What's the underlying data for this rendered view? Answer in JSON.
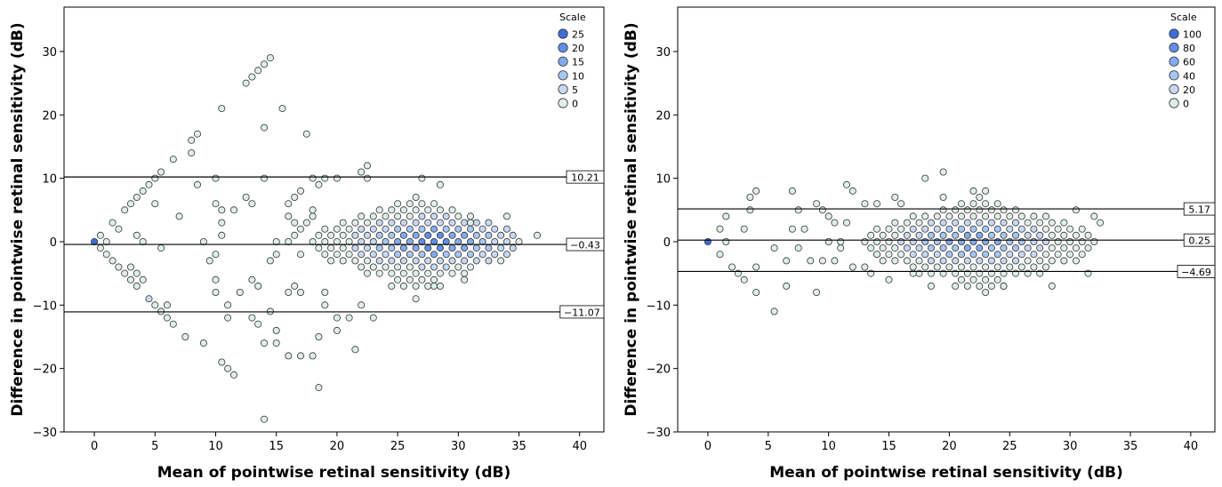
{
  "chart_data": [
    {
      "type": "scatter",
      "xlabel": "Mean of pointwise retinal sensitivity (dB)",
      "ylabel": "Difference in pointwise retinal sensitivity (dB)",
      "xlim": [
        -2.5,
        42
      ],
      "ylim": [
        -30,
        37
      ],
      "xticks": [
        0,
        5,
        10,
        15,
        20,
        25,
        30,
        35,
        40
      ],
      "yticks": [
        -30,
        -20,
        -10,
        0,
        10,
        20,
        30
      ],
      "grid": false,
      "lines": [
        10.21,
        -0.43,
        -11.07
      ],
      "line_labels": [
        "10.21",
        "-0.43",
        "-11.07"
      ],
      "legend": {
        "title": "Scale",
        "placement": "top-right",
        "items": [
          "25",
          "20",
          "15",
          "10",
          "5",
          "0"
        ],
        "colors": [
          "#3d6fd8",
          "#5f8fe6",
          "#82aaee",
          "#a7c6f0",
          "#c8d8f2",
          "#dfeee9"
        ]
      },
      "points": [
        [
          0,
          0,
          25
        ],
        [
          0.5,
          1,
          2
        ],
        [
          1,
          0,
          1
        ],
        [
          0.5,
          -1,
          1
        ],
        [
          1.5,
          3,
          1
        ],
        [
          2,
          2,
          1
        ],
        [
          1,
          -2,
          1
        ],
        [
          1.5,
          -3,
          1
        ],
        [
          2,
          -4,
          1
        ],
        [
          2.5,
          -5,
          1
        ],
        [
          3,
          -6,
          1
        ],
        [
          2.5,
          5,
          1
        ],
        [
          3,
          6,
          1
        ],
        [
          3.5,
          7,
          1
        ],
        [
          4,
          8,
          1
        ],
        [
          4.5,
          9,
          1
        ],
        [
          5,
          10,
          1
        ],
        [
          5.5,
          11,
          1
        ],
        [
          3.5,
          1,
          1
        ],
        [
          4,
          0,
          1
        ],
        [
          3,
          -4,
          1
        ],
        [
          3.5,
          -5,
          1
        ],
        [
          4,
          -6,
          1
        ],
        [
          3.5,
          -7,
          1
        ],
        [
          4.5,
          -9,
          3
        ],
        [
          5,
          -10,
          1
        ],
        [
          5.5,
          -11,
          1
        ],
        [
          6,
          -10,
          1
        ],
        [
          6,
          -12,
          1
        ],
        [
          6.5,
          -13,
          1
        ],
        [
          5,
          6,
          1
        ],
        [
          5.5,
          -1,
          1
        ],
        [
          7,
          4,
          1
        ],
        [
          6.5,
          13,
          1
        ],
        [
          7.5,
          -15,
          1
        ],
        [
          8,
          14,
          1
        ],
        [
          8,
          16,
          1
        ],
        [
          8.5,
          17,
          1
        ],
        [
          8.5,
          9,
          1
        ],
        [
          9,
          0,
          1
        ],
        [
          9,
          -16,
          1
        ],
        [
          9.5,
          -3,
          1
        ],
        [
          10,
          -2,
          1
        ],
        [
          10,
          10,
          1
        ],
        [
          10,
          6,
          1
        ],
        [
          10.5,
          5,
          1
        ],
        [
          10.5,
          3,
          1
        ],
        [
          10.5,
          1,
          1
        ],
        [
          10,
          -6,
          1
        ],
        [
          10,
          -8,
          1
        ],
        [
          10.5,
          -19,
          1
        ],
        [
          10.5,
          21,
          1
        ],
        [
          11,
          -20,
          1
        ],
        [
          11.5,
          -21,
          1
        ],
        [
          11,
          -10,
          1
        ],
        [
          11,
          -12,
          1
        ],
        [
          11.5,
          5,
          1
        ],
        [
          12,
          -8,
          1
        ],
        [
          12.5,
          7,
          1
        ],
        [
          12.5,
          25,
          1
        ],
        [
          13,
          26,
          1
        ],
        [
          13.5,
          27,
          1
        ],
        [
          14,
          28,
          1
        ],
        [
          14.5,
          29,
          1
        ],
        [
          13,
          6,
          1
        ],
        [
          13,
          -12,
          1
        ],
        [
          13.5,
          -13,
          1
        ],
        [
          13,
          -6,
          1
        ],
        [
          13.5,
          -7,
          1
        ],
        [
          14,
          18,
          1
        ],
        [
          14,
          10,
          1
        ],
        [
          14,
          -16,
          1
        ],
        [
          14,
          -28,
          1
        ],
        [
          14.5,
          -11,
          1
        ],
        [
          14.5,
          -3,
          1
        ],
        [
          15,
          -2,
          1
        ],
        [
          15,
          0,
          1
        ],
        [
          15,
          -14,
          1
        ],
        [
          15,
          -16,
          1
        ],
        [
          15.5,
          21,
          1
        ],
        [
          16,
          6,
          1
        ],
        [
          16,
          4,
          1
        ],
        [
          16,
          0,
          1
        ],
        [
          16,
          -8,
          1
        ],
        [
          16,
          -18,
          1
        ],
        [
          16.5,
          7,
          1
        ],
        [
          16.5,
          3,
          1
        ],
        [
          16.5,
          1,
          1
        ],
        [
          16.5,
          -7,
          1
        ],
        [
          17,
          8,
          1
        ],
        [
          17,
          2,
          1
        ],
        [
          17,
          -2,
          1
        ],
        [
          17,
          -8,
          1
        ],
        [
          17,
          -18,
          1
        ],
        [
          17.5,
          17,
          1
        ],
        [
          17.5,
          3,
          1
        ],
        [
          18,
          10,
          1
        ],
        [
          18,
          5,
          1
        ],
        [
          18,
          4,
          1
        ],
        [
          18,
          -18,
          1
        ],
        [
          18.5,
          9,
          1
        ],
        [
          18.5,
          -15,
          1
        ],
        [
          18.5,
          -23,
          1
        ],
        [
          19,
          10,
          1
        ],
        [
          19,
          -10,
          1
        ],
        [
          19,
          -8,
          1
        ],
        [
          20,
          10,
          1
        ],
        [
          20,
          -12,
          1
        ],
        [
          20,
          -14,
          1
        ],
        [
          21,
          -12,
          1
        ],
        [
          21.5,
          -17,
          1
        ],
        [
          22,
          -10,
          1
        ],
        [
          22,
          11,
          1
        ],
        [
          22.5,
          12,
          1
        ],
        [
          22.5,
          10,
          1
        ],
        [
          23,
          -12,
          1
        ],
        [
          26.5,
          -9,
          1
        ],
        [
          27,
          10,
          1
        ],
        [
          28,
          -7,
          1
        ],
        [
          28.5,
          9,
          1
        ],
        [
          30.5,
          -6,
          1
        ],
        [
          31,
          3,
          1
        ],
        [
          34,
          4,
          1
        ],
        [
          36.5,
          1,
          1
        ]
      ],
      "dense_region": {
        "x_from": 18,
        "x_to": 35,
        "step": 0.5,
        "peak_x": 28,
        "peak_y": 0,
        "peak_scale": 20
      }
    },
    {
      "type": "scatter",
      "xlabel": "Mean of pointwise retinal sensitivity (dB)",
      "ylabel": "Difference in pointwise retinal sensitivity (dB)",
      "xlim": [
        -2.5,
        42
      ],
      "ylim": [
        -30,
        37
      ],
      "xticks": [
        0,
        5,
        10,
        15,
        20,
        25,
        30,
        35,
        40
      ],
      "yticks": [
        -30,
        -20,
        -10,
        0,
        10,
        20,
        30
      ],
      "grid": false,
      "lines": [
        5.17,
        0.25,
        -4.69
      ],
      "line_labels": [
        "5.17",
        "0.25",
        "-4.69"
      ],
      "legend": {
        "title": "Scale",
        "placement": "top-right",
        "items": [
          "100",
          "80",
          "60",
          "40",
          "20",
          "0"
        ],
        "colors": [
          "#3d6fd8",
          "#5f8fe6",
          "#82aaee",
          "#a7c6f0",
          "#c8d8f2",
          "#dfeee9"
        ]
      },
      "points": [
        [
          0,
          0,
          100
        ],
        [
          1,
          -2,
          1
        ],
        [
          1,
          2,
          1
        ],
        [
          1.5,
          4,
          1
        ],
        [
          1.5,
          0,
          1
        ],
        [
          2,
          -4,
          1
        ],
        [
          2.5,
          -5,
          1
        ],
        [
          3,
          -6,
          1
        ],
        [
          3,
          2,
          1
        ],
        [
          3.5,
          5,
          1
        ],
        [
          3.5,
          7,
          1
        ],
        [
          4,
          8,
          1
        ],
        [
          4,
          -4,
          1
        ],
        [
          4,
          -8,
          1
        ],
        [
          5.5,
          -11,
          1
        ],
        [
          5.5,
          -1,
          1
        ],
        [
          6.5,
          -3,
          1
        ],
        [
          6.5,
          -7,
          1
        ],
        [
          7,
          2,
          1
        ],
        [
          7,
          8,
          1
        ],
        [
          7.5,
          -1,
          1
        ],
        [
          7.5,
          5,
          1
        ],
        [
          8,
          2,
          1
        ],
        [
          8.5,
          -3,
          1
        ],
        [
          9,
          -8,
          1
        ],
        [
          9,
          6,
          1
        ],
        [
          9.5,
          -3,
          1
        ],
        [
          9.5,
          5,
          1
        ],
        [
          10,
          0,
          1
        ],
        [
          10,
          4,
          1
        ],
        [
          10.5,
          -3,
          1
        ],
        [
          10.5,
          3,
          1
        ],
        [
          11,
          0,
          1
        ],
        [
          11,
          -1,
          1
        ],
        [
          11.5,
          9,
          1
        ],
        [
          11.5,
          3,
          1
        ],
        [
          12,
          8,
          1
        ],
        [
          12,
          -4,
          1
        ],
        [
          13,
          6,
          1
        ],
        [
          13,
          -4,
          1
        ],
        [
          13.5,
          -5,
          1
        ],
        [
          14,
          -2,
          1
        ],
        [
          14,
          6,
          1
        ],
        [
          15,
          -6,
          1
        ],
        [
          15.5,
          7,
          1
        ],
        [
          16,
          6,
          1
        ],
        [
          17,
          -5,
          1
        ],
        [
          18,
          10,
          1
        ],
        [
          18.5,
          -7,
          1
        ],
        [
          19.5,
          11,
          1
        ],
        [
          19.5,
          7,
          1
        ],
        [
          22,
          8,
          1
        ],
        [
          23,
          8,
          1
        ],
        [
          23,
          -8,
          1
        ],
        [
          24.5,
          -7,
          1
        ],
        [
          28.5,
          -7,
          1
        ],
        [
          30.5,
          5,
          1
        ],
        [
          31.5,
          -5,
          1
        ],
        [
          32,
          4,
          1
        ],
        [
          32.5,
          3,
          1
        ]
      ],
      "dense_region": {
        "x_from": 13,
        "x_to": 32,
        "step": 0.5,
        "peak_x": 22,
        "peak_y": 0,
        "peak_scale": 60
      }
    }
  ]
}
